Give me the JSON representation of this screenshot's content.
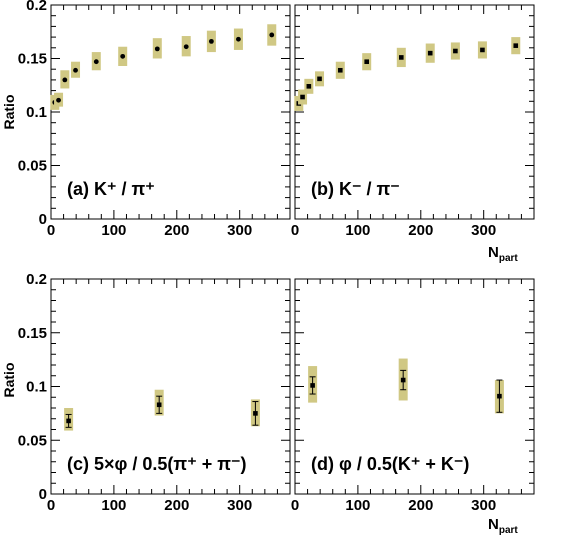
{
  "y_axis_label": "Ratio",
  "x_axis_label": {
    "main": "N",
    "sub": "part"
  },
  "chart_data": [
    {
      "type": "scatter",
      "panel_label": "(a)   K⁺ / π⁺",
      "xlim": [
        0,
        380
      ],
      "ylim": [
        0,
        0.2
      ],
      "xticks": [
        "0",
        "100",
        "200",
        "300"
      ],
      "yticks": [
        "0",
        "0.05",
        "0.1",
        "0.15",
        "0.2"
      ],
      "x": [
        6,
        12,
        22,
        39,
        72,
        114,
        169,
        215,
        255,
        298,
        351
      ],
      "y": [
        0.109,
        0.111,
        0.13,
        0.139,
        0.147,
        0.152,
        0.159,
        0.161,
        0.166,
        0.168,
        0.172
      ],
      "sys_low": [
        0.102,
        0.105,
        0.122,
        0.132,
        0.139,
        0.143,
        0.15,
        0.152,
        0.156,
        0.158,
        0.162
      ],
      "sys_high": [
        0.116,
        0.118,
        0.139,
        0.147,
        0.156,
        0.161,
        0.169,
        0.171,
        0.176,
        0.178,
        0.182
      ],
      "stat_err": [
        0.0012,
        0.0012,
        0.0012,
        0.0012,
        0.0012,
        0.0012,
        0.0012,
        0.0012,
        0.0012,
        0.0012,
        0.0012
      ],
      "marker": "circle"
    },
    {
      "type": "scatter",
      "panel_label": "(b)   K⁻ / π⁻",
      "xlim": [
        0,
        380
      ],
      "ylim": [
        0,
        0.2
      ],
      "xticks": [
        "0",
        "100",
        "200",
        "300"
      ],
      "yticks": [],
      "x": [
        6,
        12,
        22,
        39,
        72,
        114,
        169,
        215,
        255,
        298,
        351
      ],
      "y": [
        0.108,
        0.114,
        0.124,
        0.131,
        0.139,
        0.147,
        0.151,
        0.155,
        0.157,
        0.158,
        0.162
      ],
      "sys_low": [
        0.101,
        0.107,
        0.117,
        0.124,
        0.131,
        0.139,
        0.142,
        0.146,
        0.149,
        0.15,
        0.154
      ],
      "sys_high": [
        0.115,
        0.121,
        0.131,
        0.138,
        0.147,
        0.155,
        0.16,
        0.164,
        0.165,
        0.166,
        0.17
      ],
      "stat_err": [
        0.0015,
        0.0015,
        0.0015,
        0.0015,
        0.0015,
        0.0015,
        0.0015,
        0.0015,
        0.0015,
        0.0015,
        0.0015
      ],
      "marker": "square"
    },
    {
      "type": "scatter",
      "panel_label": "(c)   5×φ / 0.5(π⁺ + π⁻)",
      "xlim": [
        0,
        380
      ],
      "ylim": [
        0,
        0.2
      ],
      "xticks": [
        "0",
        "100",
        "200",
        "300"
      ],
      "yticks": [
        "0",
        "0.05",
        "0.1",
        "0.15",
        "0.2"
      ],
      "x": [
        28,
        172,
        325
      ],
      "y": [
        0.068,
        0.083,
        0.075
      ],
      "sys_low": [
        0.059,
        0.073,
        0.063
      ],
      "sys_high": [
        0.08,
        0.097,
        0.088
      ],
      "stat_err": [
        0.006,
        0.008,
        0.011
      ],
      "marker": "square"
    },
    {
      "type": "scatter",
      "panel_label": "(d)   φ / 0.5(K⁺ + K⁻)",
      "xlim": [
        0,
        380
      ],
      "ylim": [
        0,
        0.2
      ],
      "xticks": [
        "0",
        "100",
        "200",
        "300"
      ],
      "yticks": [],
      "x": [
        28,
        172,
        325
      ],
      "y": [
        0.101,
        0.106,
        0.091
      ],
      "sys_low": [
        0.085,
        0.087,
        0.075
      ],
      "sys_high": [
        0.119,
        0.126,
        0.106
      ],
      "stat_err": [
        0.008,
        0.009,
        0.015
      ],
      "marker": "square"
    }
  ],
  "colors": {
    "systematic_band": "#d0c884",
    "marker": "#000000"
  }
}
